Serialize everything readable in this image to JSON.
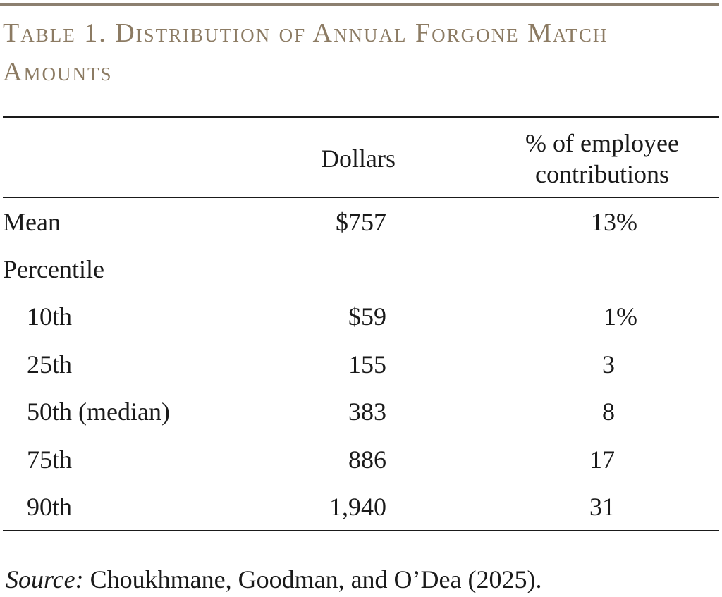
{
  "title": "Table 1. Distribution of Annual Forgone Match Amounts",
  "headers": {
    "dollars": "Dollars",
    "pct_line1": "% of employee",
    "pct_line2": "contributions"
  },
  "rows": [
    {
      "label": "Mean",
      "dollars": "$757",
      "pct": "13%"
    },
    {
      "label": "Percentile",
      "dollars": "",
      "pct": ""
    },
    {
      "label": "10th",
      "dollars": "$59",
      "pct": "1%"
    },
    {
      "label": "25th",
      "dollars": "155",
      "pct": "3"
    },
    {
      "label": "50th (median)",
      "dollars": "383",
      "pct": "8"
    },
    {
      "label": "75th",
      "dollars": "886",
      "pct": "17"
    },
    {
      "label": "90th",
      "dollars": "1,940",
      "pct": "31"
    }
  ],
  "source": {
    "label": "Source:",
    "text": " Choukhmane, Goodman, and O’Dea (2025)."
  },
  "colors": {
    "title": "#8c7b63",
    "top_rule": "#8c8070",
    "text": "#1a1a1a"
  }
}
